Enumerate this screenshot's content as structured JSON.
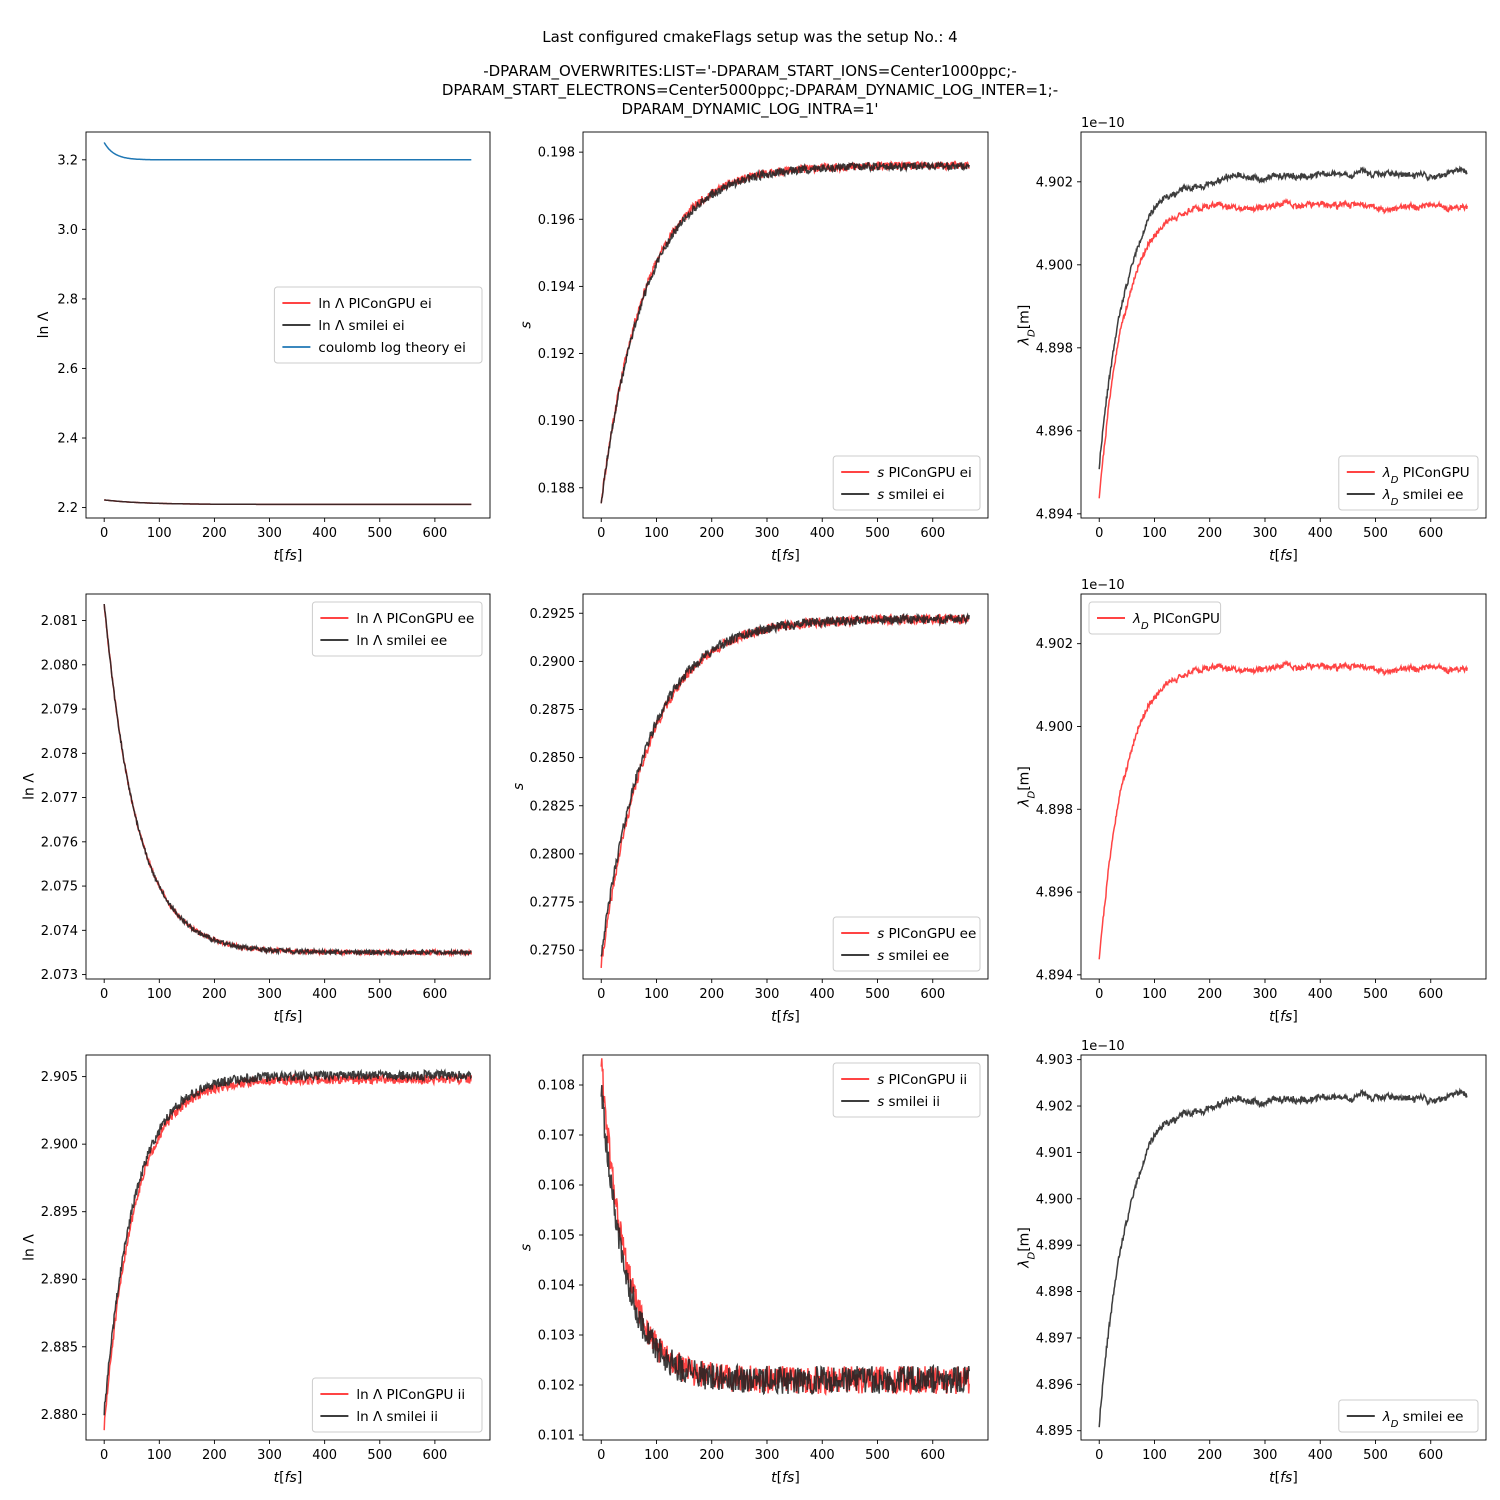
{
  "figure": {
    "title_lines": [
      "Last configured cmakeFlags setup was the setup No.: 4",
      "",
      "-DPARAM_OVERWRITES:LIST='-DPARAM_START_IONS=Center1000ppc;-",
      "DPARAM_START_ELECTRONS=Center5000ppc;-DPARAM_DYNAMIC_LOG_INTER=1;-",
      "DPARAM_DYNAMIC_LOG_INTRA=1'"
    ]
  },
  "colors": {
    "piconqpu": "#ff2a2a",
    "smilei": "#222222",
    "theory": "#1f77b4"
  },
  "chart_data": [
    {
      "id": "lnL_ei",
      "type": "line",
      "xlabel": "t[fs]",
      "ylabel": "ln Λ",
      "xlim": [
        -33,
        700
      ],
      "ylim": [
        2.17,
        3.28
      ],
      "xticks": [
        0,
        100,
        200,
        300,
        400,
        500,
        600
      ],
      "yticks": [
        2.2,
        2.4,
        2.6,
        2.8,
        3.0,
        3.2
      ],
      "ytick_decimals": 1,
      "offset_text": "",
      "legend": "center-right",
      "series": [
        {
          "name": "ln Λ PIConGPU ei",
          "color": "#ff2a2a",
          "model": {
            "start": 2.222,
            "end": 2.209,
            "tau": 70,
            "noise": 0
          }
        },
        {
          "name": "ln Λ smilei ei",
          "color": "#222222",
          "model": {
            "start": 2.222,
            "end": 2.209,
            "tau": 70,
            "noise": 0
          }
        },
        {
          "name": "coulomb log theory ei",
          "color": "#1f77b4",
          "model": {
            "start": 3.25,
            "end": 3.2,
            "tau": 18,
            "noise": 0
          }
        }
      ]
    },
    {
      "id": "s_ei",
      "type": "line",
      "xlabel": "t[fs]",
      "ylabel": "s",
      "xlim": [
        -33,
        700
      ],
      "ylim": [
        0.1871,
        0.1986
      ],
      "xticks": [
        0,
        100,
        200,
        300,
        400,
        500,
        600
      ],
      "yticks": [
        0.188,
        0.19,
        0.192,
        0.194,
        0.196,
        0.198
      ],
      "ytick_decimals": 3,
      "offset_text": "",
      "legend": "lower-right",
      "series": [
        {
          "name": "s PIConGPU ei",
          "color": "#ff2a2a",
          "model": {
            "start": 0.1876,
            "end": 0.1976,
            "tau": 80,
            "noise": 0.00012,
            "seed": 11
          }
        },
        {
          "name": "s smilei ei",
          "color": "#222222",
          "model": {
            "start": 0.1876,
            "end": 0.1976,
            "tau": 82,
            "noise": 0.00012,
            "seed": 12
          }
        }
      ]
    },
    {
      "id": "lambdaD_ei",
      "type": "line",
      "xlabel": "t[fs]",
      "ylabel": "λD[m]",
      "xlim": [
        -33,
        700
      ],
      "ylim": [
        4.8939,
        4.9032
      ],
      "xticks": [
        0,
        100,
        200,
        300,
        400,
        500,
        600
      ],
      "yticks": [
        4.894,
        4.896,
        4.898,
        4.9,
        4.902
      ],
      "ytick_decimals": 3,
      "offset_text": "1e−10",
      "legend": "lower-right",
      "series": [
        {
          "name": "λD PIConGPU",
          "color": "#ff2a2a",
          "model": {
            "start": 4.8944,
            "end": 4.9014,
            "tau": 45,
            "noise": 6e-05,
            "seed": 21,
            "wander": 0.0004
          }
        },
        {
          "name": "λD smilei ee",
          "color": "#222222",
          "model": {
            "start": 4.8951,
            "end": 4.9022,
            "tau": 50,
            "noise": 6e-05,
            "seed": 22,
            "wander": 0.0004
          }
        }
      ]
    },
    {
      "id": "lnL_ee",
      "type": "line",
      "xlabel": "t[fs]",
      "ylabel": "ln Λ",
      "xlim": [
        -33,
        700
      ],
      "ylim": [
        2.0729,
        2.0816
      ],
      "xticks": [
        0,
        100,
        200,
        300,
        400,
        500,
        600
      ],
      "yticks": [
        2.073,
        2.074,
        2.075,
        2.076,
        2.077,
        2.078,
        2.079,
        2.08,
        2.081
      ],
      "ytick_decimals": 3,
      "offset_text": "",
      "legend": "upper-right",
      "series": [
        {
          "name": "ln Λ PIConGPU ee",
          "color": "#ff2a2a",
          "model": {
            "start": 2.0814,
            "end": 2.0735,
            "tau": 60,
            "noise": 5e-05,
            "seed": 31
          }
        },
        {
          "name": "ln Λ smilei ee",
          "color": "#222222",
          "model": {
            "start": 2.0814,
            "end": 2.0735,
            "tau": 60,
            "noise": 5e-05,
            "seed": 32
          }
        }
      ]
    },
    {
      "id": "s_ee",
      "type": "line",
      "xlabel": "t[fs]",
      "ylabel": "s",
      "xlim": [
        -33,
        700
      ],
      "ylim": [
        0.2735,
        0.2935
      ],
      "xticks": [
        0,
        100,
        200,
        300,
        400,
        500,
        600
      ],
      "yticks": [
        0.275,
        0.2775,
        0.28,
        0.2825,
        0.285,
        0.2875,
        0.29,
        0.2925
      ],
      "ytick_decimals": 4,
      "offset_text": "",
      "legend": "lower-right",
      "series": [
        {
          "name": "s PIConGPU ee",
          "color": "#ff2a2a",
          "model": {
            "start": 0.2742,
            "end": 0.2922,
            "tau": 85,
            "noise": 0.00025,
            "seed": 41
          }
        },
        {
          "name": "s smilei ee",
          "color": "#222222",
          "model": {
            "start": 0.2748,
            "end": 0.2922,
            "tau": 85,
            "noise": 0.00025,
            "seed": 42
          }
        }
      ]
    },
    {
      "id": "lambdaD_ee",
      "type": "line",
      "xlabel": "t[fs]",
      "ylabel": "λD[m]",
      "xlim": [
        -33,
        700
      ],
      "ylim": [
        4.8939,
        4.9032
      ],
      "xticks": [
        0,
        100,
        200,
        300,
        400,
        500,
        600
      ],
      "yticks": [
        4.894,
        4.896,
        4.898,
        4.9,
        4.902
      ],
      "ytick_decimals": 3,
      "offset_text": "1e−10",
      "legend": "upper-left",
      "series": [
        {
          "name": "λD PIConGPU",
          "color": "#ff2a2a",
          "model": {
            "start": 4.8944,
            "end": 4.9014,
            "tau": 45,
            "noise": 6e-05,
            "seed": 21,
            "wander": 0.0004
          }
        }
      ]
    },
    {
      "id": "lnL_ii",
      "type": "line",
      "xlabel": "t[fs]",
      "ylabel": "ln Λ",
      "xlim": [
        -33,
        700
      ],
      "ylim": [
        2.8781,
        2.9066
      ],
      "xticks": [
        0,
        100,
        200,
        300,
        400,
        500,
        600
      ],
      "yticks": [
        2.88,
        2.885,
        2.89,
        2.895,
        2.9,
        2.905
      ],
      "ytick_decimals": 3,
      "offset_text": "",
      "legend": "lower-right",
      "series": [
        {
          "name": "ln Λ PIConGPU ii",
          "color": "#ff2a2a",
          "model": {
            "start": 2.879,
            "end": 2.9048,
            "tau": 55,
            "noise": 0.00035,
            "seed": 51
          }
        },
        {
          "name": "ln Λ smilei ii",
          "color": "#222222",
          "model": {
            "start": 2.8801,
            "end": 2.9051,
            "tau": 55,
            "noise": 0.00035,
            "seed": 52
          }
        }
      ]
    },
    {
      "id": "s_ii",
      "type": "line",
      "xlabel": "t[fs]",
      "ylabel": "s",
      "xlim": [
        -33,
        700
      ],
      "ylim": [
        0.1009,
        0.1086
      ],
      "xticks": [
        0,
        100,
        200,
        300,
        400,
        500,
        600
      ],
      "yticks": [
        0.101,
        0.102,
        0.103,
        0.104,
        0.105,
        0.106,
        0.107,
        0.108
      ],
      "ytick_decimals": 3,
      "offset_text": "",
      "legend": "upper-right",
      "series": [
        {
          "name": "s PIConGPU ii",
          "color": "#ff2a2a",
          "model": {
            "start": 0.1085,
            "end": 0.1021,
            "tau": 45,
            "noise": 0.00028,
            "seed": 61
          }
        },
        {
          "name": "s smilei ii",
          "color": "#222222",
          "model": {
            "start": 0.1079,
            "end": 0.1021,
            "tau": 45,
            "noise": 0.00028,
            "seed": 62
          }
        }
      ]
    },
    {
      "id": "lambdaD_ii",
      "type": "line",
      "xlabel": "t[fs]",
      "ylabel": "λD[m]",
      "xlim": [
        -33,
        700
      ],
      "ylim": [
        4.8948,
        4.9031
      ],
      "xticks": [
        0,
        100,
        200,
        300,
        400,
        500,
        600
      ],
      "yticks": [
        4.895,
        4.896,
        4.897,
        4.898,
        4.899,
        4.9,
        4.901,
        4.902,
        4.903
      ],
      "ytick_decimals": 3,
      "offset_text": "1e−10",
      "legend": "lower-right",
      "series": [
        {
          "name": "λD smilei ee",
          "color": "#222222",
          "model": {
            "start": 4.8951,
            "end": 4.9022,
            "tau": 50,
            "noise": 6e-05,
            "seed": 22,
            "wander": 0.0004
          }
        }
      ]
    }
  ]
}
